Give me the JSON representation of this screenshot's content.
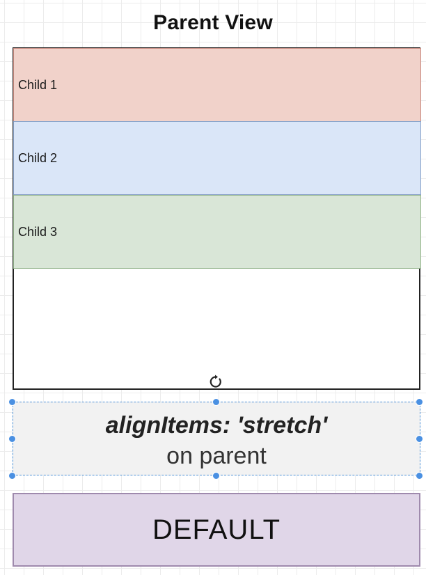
{
  "parent": {
    "title": "Parent View",
    "children": [
      {
        "label": "Child 1",
        "color": "#f1d2ca"
      },
      {
        "label": "Child 2",
        "color": "#dae6f8"
      },
      {
        "label": "Child 3",
        "color": "#d9e6d7"
      }
    ]
  },
  "annotation": {
    "main": "alignItems: 'stretch'",
    "sub": "on parent",
    "selection_color": "#4a90e2"
  },
  "default_box": {
    "label": "DEFAULT",
    "color": "#e0d6e8"
  },
  "icons": {
    "rotate": "rotate-handle-icon",
    "handles": "selection-handle-icon"
  }
}
